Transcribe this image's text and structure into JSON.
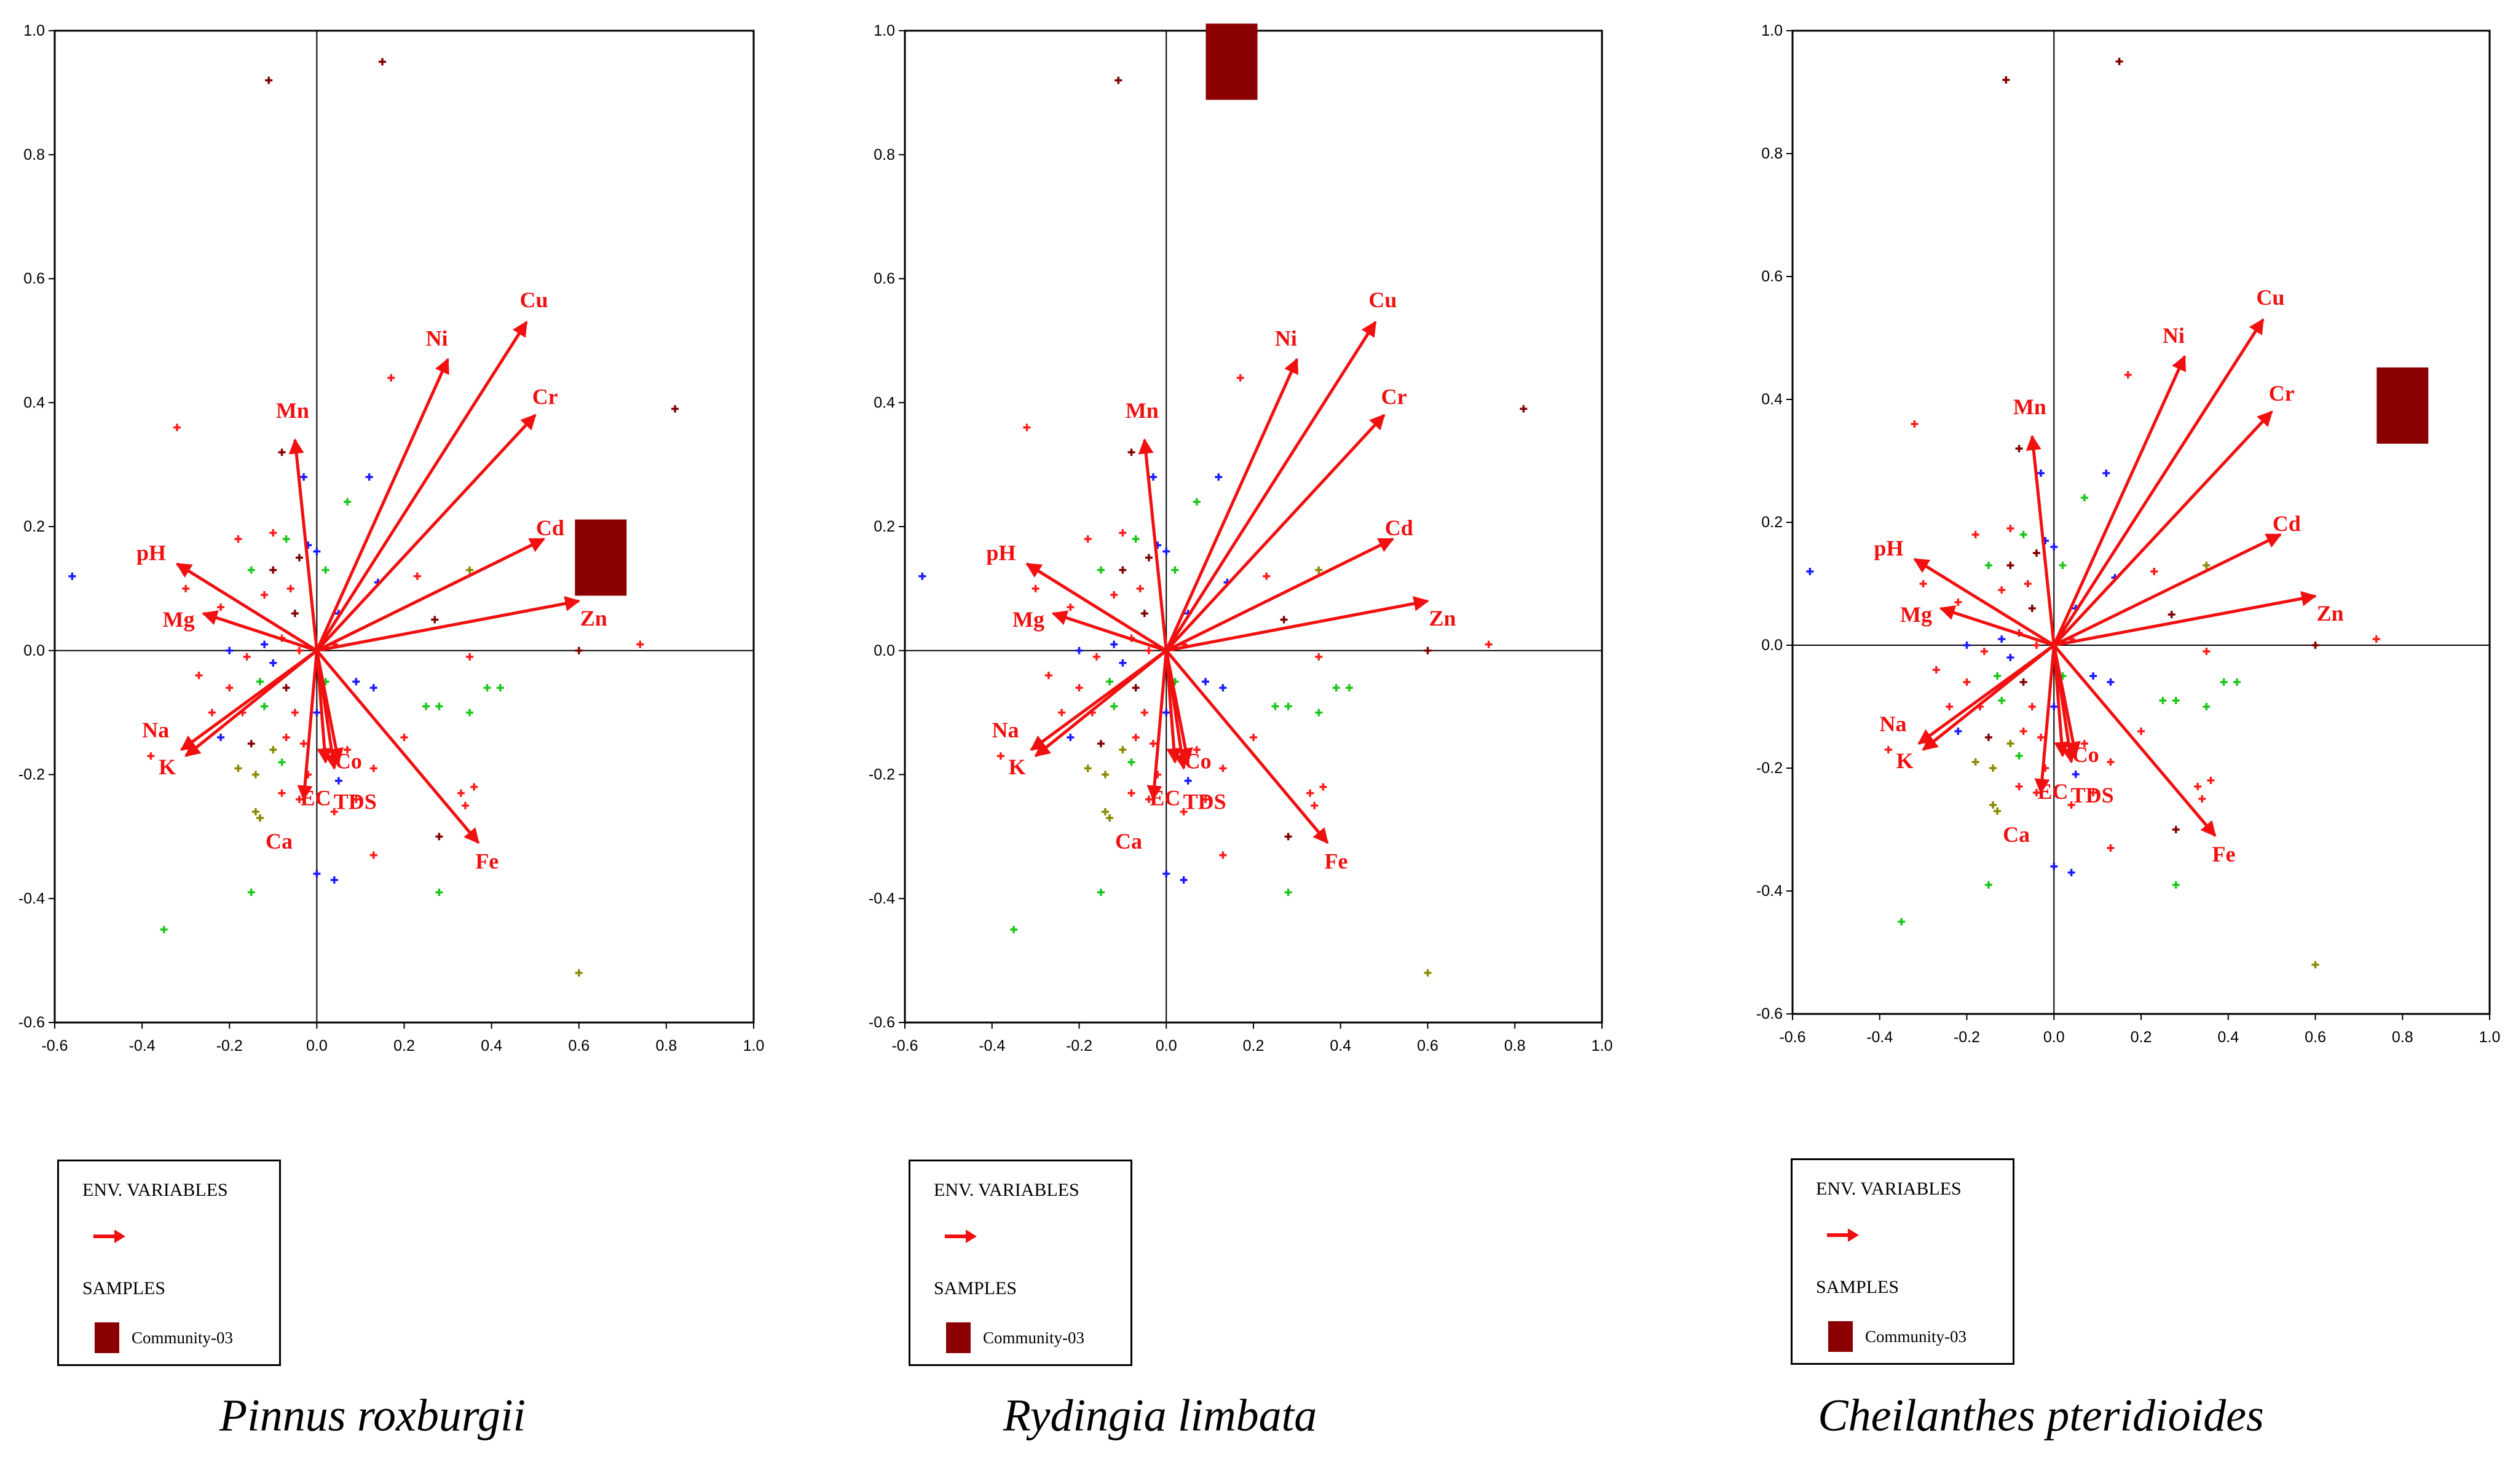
{
  "colors": {
    "arrow": "#f01010",
    "sample": "#8b0000",
    "point_red": "#ff1a1a",
    "point_blue": "#1a1aff",
    "point_green": "#19c619",
    "point_darkred": "#800000",
    "point_olive": "#8a8a00",
    "axis": "#000000"
  },
  "chart_data": [
    {
      "type": "scatter",
      "title": "Pinnus roxburgii",
      "xlim": [
        -0.6,
        1.0
      ],
      "ylim": [
        -0.6,
        1.0
      ],
      "xticks": [
        -0.6,
        -0.4,
        -0.2,
        0.0,
        0.2,
        0.4,
        0.6,
        0.8,
        1.0
      ],
      "yticks": [
        -0.6,
        -0.4,
        -0.2,
        0.0,
        0.2,
        0.4,
        0.6,
        0.8,
        1.0
      ],
      "env_variables": [
        {
          "name": "Cu",
          "x": 0.48,
          "y": 0.53
        },
        {
          "name": "Ni",
          "x": 0.3,
          "y": 0.47
        },
        {
          "name": "Cr",
          "x": 0.5,
          "y": 0.38
        },
        {
          "name": "Cd",
          "x": 0.52,
          "y": 0.18
        },
        {
          "name": "Zn",
          "x": 0.6,
          "y": 0.08
        },
        {
          "name": "Mn",
          "x": -0.05,
          "y": 0.34
        },
        {
          "name": "pH",
          "x": -0.32,
          "y": 0.14
        },
        {
          "name": "Mg",
          "x": -0.26,
          "y": 0.06
        },
        {
          "name": "Na",
          "x": -0.31,
          "y": -0.16
        },
        {
          "name": "K",
          "x": -0.3,
          "y": -0.17
        },
        {
          "name": "Ca",
          "x": -0.03,
          "y": -0.24
        },
        {
          "name": "EC",
          "x": 0.02,
          "y": -0.18
        },
        {
          "name": "Co",
          "x": 0.05,
          "y": -0.18
        },
        {
          "name": "TDS",
          "x": 0.04,
          "y": -0.19
        },
        {
          "name": "Fe",
          "x": 0.37,
          "y": -0.31
        }
      ],
      "sample": {
        "name": "Community-03",
        "x": 0.65,
        "y": 0.15
      }
    },
    {
      "type": "scatter",
      "title": "Rydingia limbata",
      "xlim": [
        -0.6,
        1.0
      ],
      "ylim": [
        -0.6,
        1.0
      ],
      "xticks": [
        -0.6,
        -0.4,
        -0.2,
        0.0,
        0.2,
        0.4,
        0.6,
        0.8,
        1.0
      ],
      "yticks": [
        -0.6,
        -0.4,
        -0.2,
        0.0,
        0.2,
        0.4,
        0.6,
        0.8,
        1.0
      ],
      "env_variables": [
        {
          "name": "Cu",
          "x": 0.48,
          "y": 0.53
        },
        {
          "name": "Ni",
          "x": 0.3,
          "y": 0.47
        },
        {
          "name": "Cr",
          "x": 0.5,
          "y": 0.38
        },
        {
          "name": "Cd",
          "x": 0.52,
          "y": 0.18
        },
        {
          "name": "Zn",
          "x": 0.6,
          "y": 0.08
        },
        {
          "name": "Mn",
          "x": -0.05,
          "y": 0.34
        },
        {
          "name": "pH",
          "x": -0.32,
          "y": 0.14
        },
        {
          "name": "Mg",
          "x": -0.26,
          "y": 0.06
        },
        {
          "name": "Na",
          "x": -0.31,
          "y": -0.16
        },
        {
          "name": "K",
          "x": -0.3,
          "y": -0.17
        },
        {
          "name": "Ca",
          "x": -0.03,
          "y": -0.24
        },
        {
          "name": "EC",
          "x": 0.02,
          "y": -0.18
        },
        {
          "name": "Co",
          "x": 0.05,
          "y": -0.18
        },
        {
          "name": "TDS",
          "x": 0.04,
          "y": -0.19
        },
        {
          "name": "Fe",
          "x": 0.37,
          "y": -0.31
        }
      ],
      "sample": {
        "name": "Community-03",
        "x": 0.15,
        "y": 0.95
      }
    },
    {
      "type": "scatter",
      "title": "Cheilanthes pteridioides",
      "xlim": [
        -0.6,
        1.0
      ],
      "ylim": [
        -0.6,
        1.0
      ],
      "xticks": [
        -0.6,
        -0.4,
        -0.2,
        0.0,
        0.2,
        0.4,
        0.6,
        0.8,
        1.0
      ],
      "yticks": [
        -0.6,
        -0.4,
        -0.2,
        0.0,
        0.2,
        0.4,
        0.6,
        0.8,
        1.0
      ],
      "env_variables": [
        {
          "name": "Cu",
          "x": 0.48,
          "y": 0.53
        },
        {
          "name": "Ni",
          "x": 0.3,
          "y": 0.47
        },
        {
          "name": "Cr",
          "x": 0.5,
          "y": 0.38
        },
        {
          "name": "Cd",
          "x": 0.52,
          "y": 0.18
        },
        {
          "name": "Zn",
          "x": 0.6,
          "y": 0.08
        },
        {
          "name": "Mn",
          "x": -0.05,
          "y": 0.34
        },
        {
          "name": "pH",
          "x": -0.32,
          "y": 0.14
        },
        {
          "name": "Mg",
          "x": -0.26,
          "y": 0.06
        },
        {
          "name": "Na",
          "x": -0.31,
          "y": -0.16
        },
        {
          "name": "K",
          "x": -0.3,
          "y": -0.17
        },
        {
          "name": "Ca",
          "x": -0.03,
          "y": -0.24
        },
        {
          "name": "EC",
          "x": 0.02,
          "y": -0.18
        },
        {
          "name": "Co",
          "x": 0.05,
          "y": -0.18
        },
        {
          "name": "TDS",
          "x": 0.04,
          "y": -0.19
        },
        {
          "name": "Fe",
          "x": 0.37,
          "y": -0.31
        }
      ],
      "sample": {
        "name": "Community-03",
        "x": 0.8,
        "y": 0.39
      }
    }
  ],
  "points": [
    {
      "x": -0.11,
      "y": 0.92,
      "c": "darkred"
    },
    {
      "x": 0.15,
      "y": 0.95,
      "c": "darkred"
    },
    {
      "x": -0.32,
      "y": 0.36,
      "c": "red"
    },
    {
      "x": -0.08,
      "y": 0.32,
      "c": "darkred"
    },
    {
      "x": 0.17,
      "y": 0.44,
      "c": "red"
    },
    {
      "x": 0.82,
      "y": 0.39,
      "c": "darkred"
    },
    {
      "x": -0.56,
      "y": 0.12,
      "c": "blue"
    },
    {
      "x": -0.03,
      "y": 0.28,
      "c": "blue"
    },
    {
      "x": 0.12,
      "y": 0.28,
      "c": "blue"
    },
    {
      "x": 0.07,
      "y": 0.24,
      "c": "green"
    },
    {
      "x": -0.1,
      "y": 0.19,
      "c": "red"
    },
    {
      "x": -0.18,
      "y": 0.18,
      "c": "red"
    },
    {
      "x": -0.07,
      "y": 0.18,
      "c": "green"
    },
    {
      "x": -0.02,
      "y": 0.17,
      "c": "blue"
    },
    {
      "x": -0.04,
      "y": 0.15,
      "c": "darkred"
    },
    {
      "x": -0.15,
      "y": 0.13,
      "c": "green"
    },
    {
      "x": -0.1,
      "y": 0.13,
      "c": "darkred"
    },
    {
      "x": 0.0,
      "y": 0.16,
      "c": "blue"
    },
    {
      "x": -0.06,
      "y": 0.1,
      "c": "red"
    },
    {
      "x": -0.12,
      "y": 0.09,
      "c": "red"
    },
    {
      "x": 0.02,
      "y": 0.13,
      "c": "green"
    },
    {
      "x": 0.05,
      "y": 0.06,
      "c": "blue"
    },
    {
      "x": 0.14,
      "y": 0.11,
      "c": "blue"
    },
    {
      "x": 0.23,
      "y": 0.12,
      "c": "red"
    },
    {
      "x": 0.35,
      "y": 0.13,
      "c": "olive"
    },
    {
      "x": 0.27,
      "y": 0.05,
      "c": "darkred"
    },
    {
      "x": -0.3,
      "y": 0.1,
      "c": "red"
    },
    {
      "x": -0.22,
      "y": 0.07,
      "c": "red"
    },
    {
      "x": -0.05,
      "y": 0.06,
      "c": "darkred"
    },
    {
      "x": -0.08,
      "y": 0.02,
      "c": "red"
    },
    {
      "x": -0.2,
      "y": 0.0,
      "c": "blue"
    },
    {
      "x": -0.12,
      "y": 0.01,
      "c": "blue"
    },
    {
      "x": -0.16,
      "y": -0.01,
      "c": "red"
    },
    {
      "x": -0.1,
      "y": -0.02,
      "c": "blue"
    },
    {
      "x": -0.04,
      "y": 0.0,
      "c": "red"
    },
    {
      "x": 0.04,
      "y": 0.01,
      "c": "red"
    },
    {
      "x": 0.6,
      "y": 0.0,
      "c": "darkred"
    },
    {
      "x": 0.74,
      "y": 0.01,
      "c": "red"
    },
    {
      "x": 0.35,
      "y": -0.01,
      "c": "red"
    },
    {
      "x": -0.27,
      "y": -0.04,
      "c": "red"
    },
    {
      "x": -0.2,
      "y": -0.06,
      "c": "red"
    },
    {
      "x": -0.13,
      "y": -0.05,
      "c": "green"
    },
    {
      "x": -0.07,
      "y": -0.06,
      "c": "darkred"
    },
    {
      "x": 0.02,
      "y": -0.05,
      "c": "green"
    },
    {
      "x": 0.09,
      "y": -0.05,
      "c": "blue"
    },
    {
      "x": 0.13,
      "y": -0.06,
      "c": "blue"
    },
    {
      "x": 0.25,
      "y": -0.09,
      "c": "green"
    },
    {
      "x": 0.28,
      "y": -0.09,
      "c": "green"
    },
    {
      "x": 0.39,
      "y": -0.06,
      "c": "green"
    },
    {
      "x": 0.42,
      "y": -0.06,
      "c": "green"
    },
    {
      "x": 0.35,
      "y": -0.1,
      "c": "green"
    },
    {
      "x": -0.24,
      "y": -0.1,
      "c": "red"
    },
    {
      "x": -0.17,
      "y": -0.1,
      "c": "red"
    },
    {
      "x": -0.12,
      "y": -0.09,
      "c": "green"
    },
    {
      "x": -0.05,
      "y": -0.1,
      "c": "red"
    },
    {
      "x": 0.0,
      "y": -0.1,
      "c": "blue"
    },
    {
      "x": -0.38,
      "y": -0.17,
      "c": "red"
    },
    {
      "x": -0.22,
      "y": -0.14,
      "c": "blue"
    },
    {
      "x": -0.15,
      "y": -0.15,
      "c": "darkred"
    },
    {
      "x": -0.1,
      "y": -0.16,
      "c": "olive"
    },
    {
      "x": -0.07,
      "y": -0.14,
      "c": "red"
    },
    {
      "x": -0.03,
      "y": -0.15,
      "c": "red"
    },
    {
      "x": 0.07,
      "y": -0.16,
      "c": "red"
    },
    {
      "x": 0.2,
      "y": -0.14,
      "c": "red"
    },
    {
      "x": -0.18,
      "y": -0.19,
      "c": "olive"
    },
    {
      "x": -0.14,
      "y": -0.2,
      "c": "olive"
    },
    {
      "x": -0.08,
      "y": -0.18,
      "c": "green"
    },
    {
      "x": -0.02,
      "y": -0.2,
      "c": "red"
    },
    {
      "x": 0.05,
      "y": -0.21,
      "c": "blue"
    },
    {
      "x": 0.13,
      "y": -0.19,
      "c": "red"
    },
    {
      "x": 0.33,
      "y": -0.23,
      "c": "red"
    },
    {
      "x": 0.36,
      "y": -0.22,
      "c": "red"
    },
    {
      "x": -0.14,
      "y": -0.26,
      "c": "olive"
    },
    {
      "x": -0.13,
      "y": -0.27,
      "c": "olive"
    },
    {
      "x": -0.08,
      "y": -0.23,
      "c": "red"
    },
    {
      "x": -0.04,
      "y": -0.24,
      "c": "red"
    },
    {
      "x": 0.04,
      "y": -0.26,
      "c": "red"
    },
    {
      "x": 0.09,
      "y": -0.24,
      "c": "red"
    },
    {
      "x": 0.28,
      "y": -0.3,
      "c": "darkred"
    },
    {
      "x": 0.34,
      "y": -0.25,
      "c": "red"
    },
    {
      "x": 0.13,
      "y": -0.33,
      "c": "red"
    },
    {
      "x": 0.0,
      "y": -0.36,
      "c": "blue"
    },
    {
      "x": 0.04,
      "y": -0.37,
      "c": "blue"
    },
    {
      "x": -0.15,
      "y": -0.39,
      "c": "green"
    },
    {
      "x": -0.35,
      "y": -0.45,
      "c": "green"
    },
    {
      "x": 0.28,
      "y": -0.39,
      "c": "green"
    },
    {
      "x": 0.6,
      "y": -0.52,
      "c": "olive"
    }
  ],
  "legend": {
    "env_label": "ENV. VARIABLES",
    "samples_label": "SAMPLES",
    "sample_name": "Community-03"
  },
  "captions": [
    "Pinnus roxburgii",
    "Rydingia limbata",
    "Cheilanthes pteridioides"
  ]
}
